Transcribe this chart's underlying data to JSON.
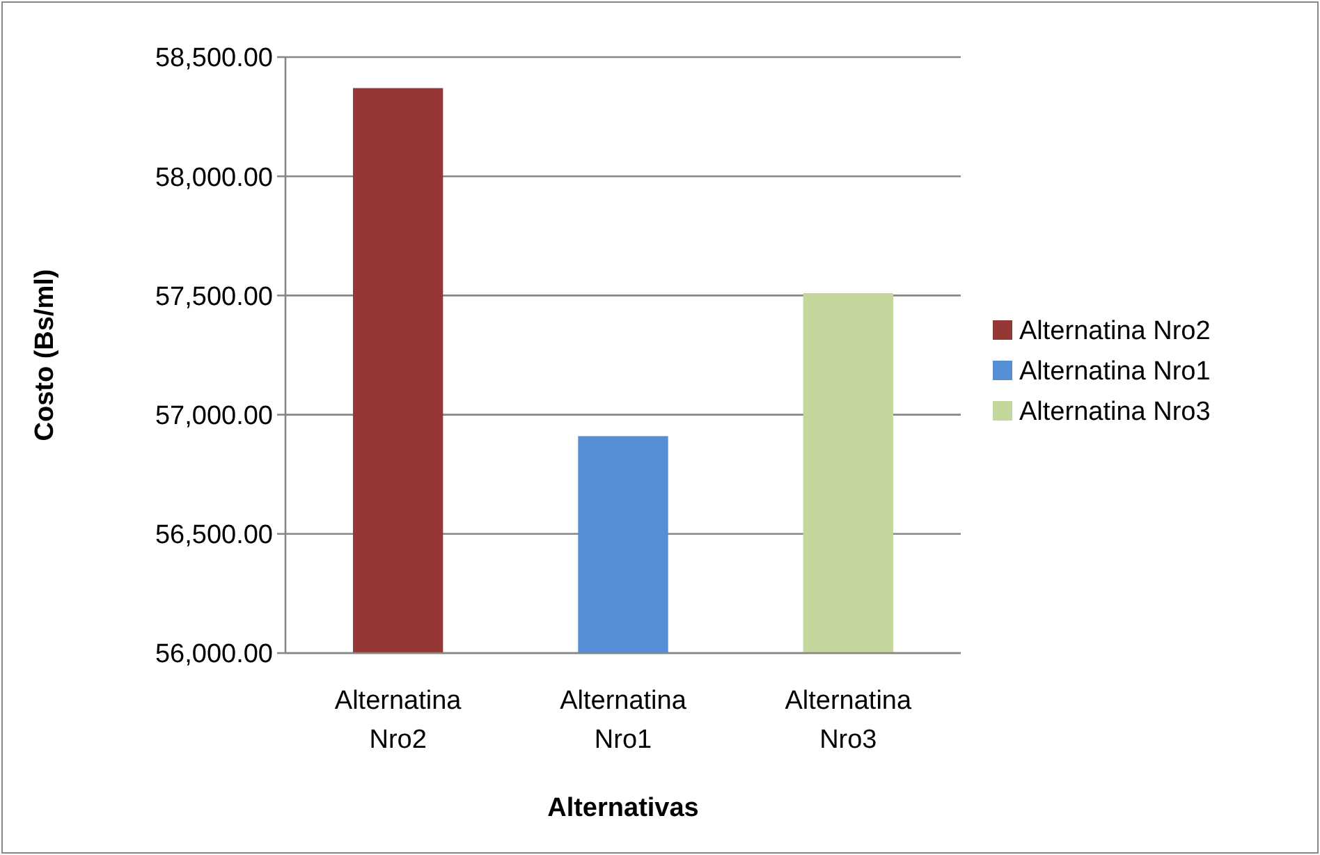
{
  "chart_data": {
    "type": "bar",
    "xlabel": "Alternativas",
    "ylabel": "Costo (Bs/ml)",
    "categories": [
      "Alternatina Nro2",
      "Alternatina Nro1",
      "Alternatina Nro3"
    ],
    "series": [
      {
        "name": "Alternatina Nro2",
        "color": "#953735",
        "values": [
          58370,
          null,
          null
        ]
      },
      {
        "name": "Alternatina Nro1",
        "color": "#558ed5",
        "values": [
          null,
          56910,
          null
        ]
      },
      {
        "name": "Alternatina Nro3",
        "color": "#c3d69b",
        "values": [
          null,
          null,
          57510
        ]
      }
    ],
    "ylim": [
      56000,
      58500
    ],
    "yticks": [
      {
        "value": 56000,
        "label": "56,000.00"
      },
      {
        "value": 56500,
        "label": "56,500.00"
      },
      {
        "value": 57000,
        "label": "57,000.00"
      },
      {
        "value": 57500,
        "label": "57,500.00"
      },
      {
        "value": 58000,
        "label": "58,000.00"
      },
      {
        "value": 58500,
        "label": "58,500.00"
      }
    ],
    "grid": "y",
    "legend": "right"
  }
}
